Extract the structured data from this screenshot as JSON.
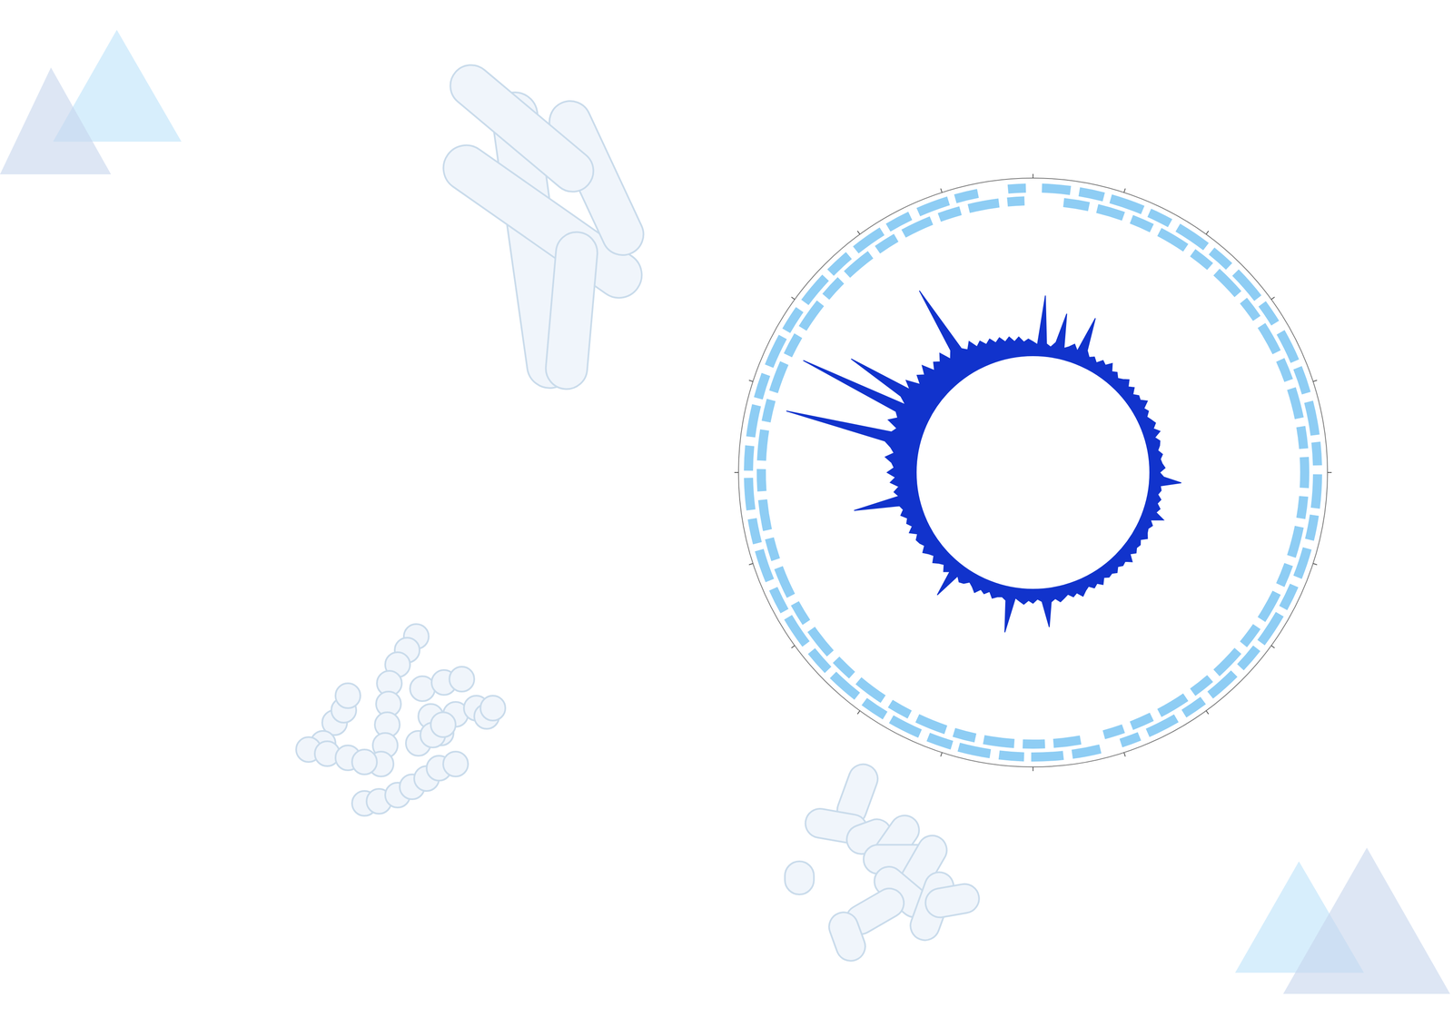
{
  "chart_data": {
    "type": "circular_genome",
    "xlim": [
      0,
      100
    ],
    "xticks": [
      0,
      5,
      10,
      15,
      20,
      25,
      30,
      35,
      40,
      45,
      50,
      55,
      60,
      65,
      70,
      75,
      80,
      85,
      90,
      95
    ],
    "tick_labels": false,
    "series": [
      {
        "type": "features",
        "color": "#8ecdf4",
        "intervals": [
          [
            0.5,
            2.1
          ],
          [
            2.6,
            4.0
          ],
          [
            4.4,
            6.3
          ],
          [
            6.7,
            8.0
          ],
          [
            8.5,
            10.4
          ],
          [
            10.8,
            12.1
          ],
          [
            12.6,
            14.5
          ],
          [
            14.9,
            16.2
          ],
          [
            16.8,
            18.6
          ],
          [
            19.0,
            20.5
          ],
          [
            21.0,
            22.9
          ],
          [
            23.3,
            24.6
          ],
          [
            25.1,
            27.0
          ],
          [
            27.4,
            28.8
          ],
          [
            29.3,
            31.0
          ],
          [
            31.5,
            32.9
          ],
          [
            33.3,
            35.2
          ],
          [
            35.6,
            37.0
          ],
          [
            37.5,
            39.3
          ],
          [
            39.8,
            41.1
          ],
          [
            41.6,
            43.4
          ],
          [
            43.9,
            45.0
          ],
          [
            46.2,
            47.8
          ],
          [
            48.3,
            50.1
          ],
          [
            50.5,
            51.9
          ],
          [
            52.4,
            54.2
          ],
          [
            54.6,
            56.0
          ],
          [
            56.5,
            58.3
          ],
          [
            58.7,
            60.1
          ],
          [
            60.6,
            62.4
          ],
          [
            62.8,
            64.2
          ],
          [
            64.7,
            66.5
          ],
          [
            66.9,
            68.3
          ],
          [
            68.8,
            70.6
          ],
          [
            71.0,
            72.4
          ],
          [
            72.9,
            74.7
          ],
          [
            75.1,
            76.5
          ],
          [
            77.0,
            78.8
          ],
          [
            79.2,
            80.6
          ],
          [
            81.1,
            82.9
          ],
          [
            83.3,
            84.7
          ],
          [
            85.2,
            87.0
          ],
          [
            87.4,
            88.8
          ],
          [
            89.3,
            91.1
          ],
          [
            91.5,
            92.9
          ],
          [
            93.4,
            95.2
          ],
          [
            95.6,
            96.9
          ],
          [
            98.6,
            99.6
          ]
        ]
      },
      {
        "type": "features",
        "color": "#8ecdf4",
        "intervals": [
          [
            1.8,
            3.3
          ],
          [
            3.8,
            5.4
          ],
          [
            5.9,
            7.2
          ],
          [
            7.7,
            9.5
          ],
          [
            10.0,
            11.3
          ],
          [
            11.8,
            13.6
          ],
          [
            14.1,
            15.4
          ],
          [
            15.9,
            17.7
          ],
          [
            18.2,
            19.5
          ],
          [
            20.0,
            21.8
          ],
          [
            22.3,
            23.6
          ],
          [
            24.1,
            25.9
          ],
          [
            26.4,
            27.7
          ],
          [
            28.2,
            30.0
          ],
          [
            30.5,
            31.8
          ],
          [
            32.3,
            34.1
          ],
          [
            34.6,
            35.9
          ],
          [
            36.4,
            38.2
          ],
          [
            38.7,
            40.0
          ],
          [
            40.5,
            42.3
          ],
          [
            42.8,
            44.1
          ],
          [
            44.6,
            45.8
          ],
          [
            47.2,
            48.8
          ],
          [
            49.3,
            50.6
          ],
          [
            51.1,
            52.9
          ],
          [
            53.4,
            54.7
          ],
          [
            55.2,
            57.0
          ],
          [
            57.5,
            58.8
          ],
          [
            59.3,
            61.1
          ],
          [
            61.6,
            62.9
          ],
          [
            63.4,
            65.2
          ],
          [
            65.7,
            67.0
          ],
          [
            67.5,
            69.3
          ],
          [
            69.8,
            71.1
          ],
          [
            71.6,
            73.4
          ],
          [
            73.9,
            75.2
          ],
          [
            75.7,
            77.5
          ],
          [
            78.0,
            79.3
          ],
          [
            79.8,
            81.6
          ],
          [
            82.1,
            83.4
          ],
          [
            83.9,
            85.7
          ],
          [
            86.2,
            87.5
          ],
          [
            88.0,
            89.8
          ],
          [
            90.3,
            91.6
          ],
          [
            92.1,
            93.9
          ],
          [
            94.4,
            95.7
          ],
          [
            96.2,
            98.0
          ],
          [
            98.5,
            99.5
          ]
        ]
      },
      {
        "type": "radar",
        "color": "#1133cc",
        "ylim": [
          0,
          100
        ],
        "values": [
          9,
          7,
          43,
          8,
          6,
          10,
          32,
          7,
          9,
          12,
          8,
          35,
          11,
          7,
          9,
          6,
          10,
          8,
          12,
          7,
          9,
          6,
          8,
          11,
          7,
          10,
          6,
          9,
          8,
          12,
          7,
          9,
          6,
          8,
          10,
          7,
          11,
          6,
          9,
          8,
          6,
          9,
          7,
          8,
          10,
          6,
          9,
          22,
          7,
          8,
          6,
          9,
          7,
          10,
          8,
          15,
          6,
          9,
          7,
          8,
          10,
          6,
          8,
          7,
          9,
          6,
          11,
          7,
          8,
          6,
          9,
          7,
          8,
          6,
          10,
          7,
          9,
          6,
          8,
          11,
          7,
          9,
          6,
          8,
          10,
          7,
          9,
          27,
          8,
          6,
          9,
          7,
          10,
          8,
          6,
          32,
          9,
          7,
          8,
          10,
          6,
          9,
          7,
          11,
          8,
          6,
          9,
          10,
          7,
          27,
          8,
          11,
          7,
          9,
          12,
          8,
          10,
          13,
          9,
          11,
          12,
          9,
          14,
          10,
          13,
          11,
          15,
          12,
          14,
          47,
          13,
          16,
          12,
          18,
          14,
          20,
          15,
          17,
          22,
          16,
          19,
          24,
          99,
          21,
          18,
          26,
          20,
          23,
          100,
          19,
          25,
          70,
          22,
          28,
          18,
          24,
          20,
          26,
          17,
          22,
          19,
          24,
          16,
          21,
          70,
          18,
          15,
          20,
          14,
          17,
          13,
          16,
          12,
          15,
          11,
          14,
          10,
          13,
          9,
          11
        ]
      }
    ]
  }
}
